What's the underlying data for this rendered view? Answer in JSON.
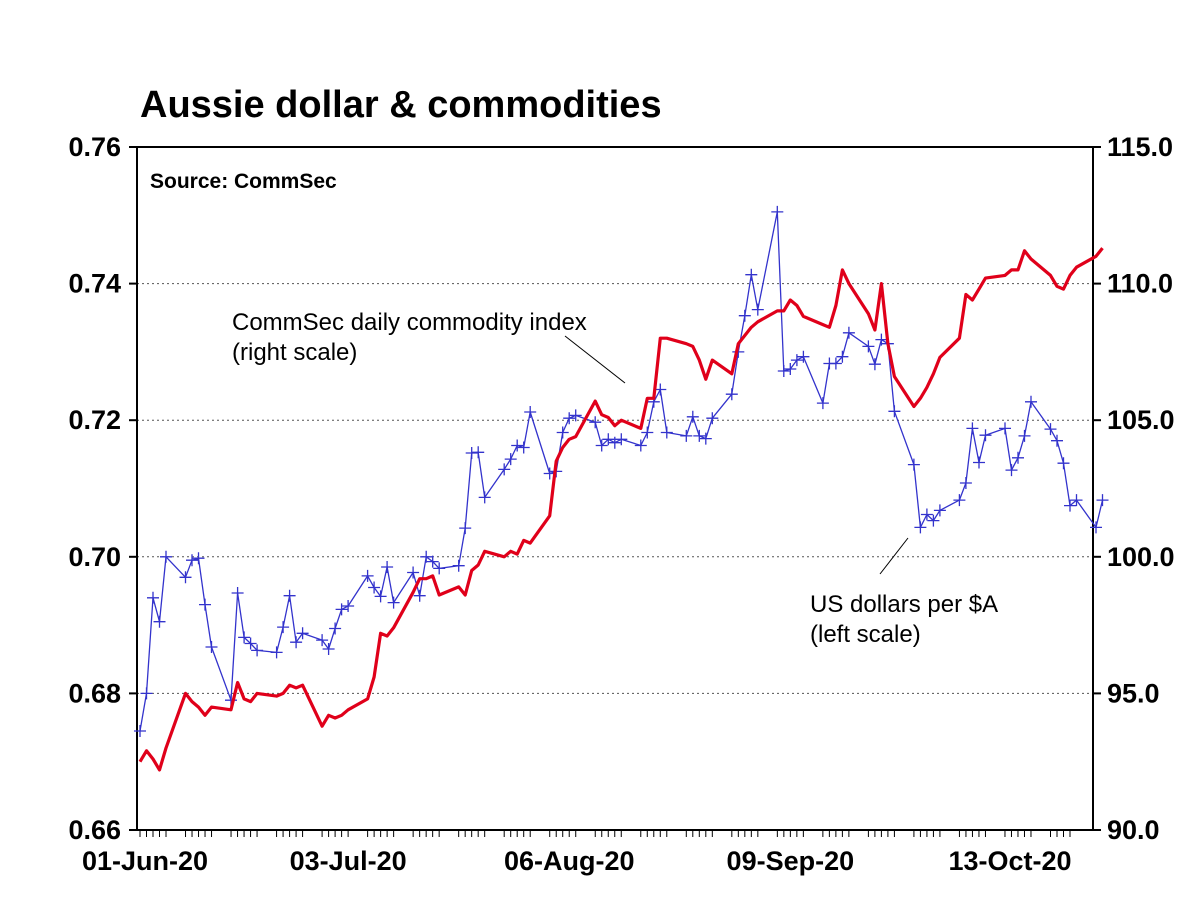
{
  "chart_data": {
    "type": "line",
    "title": "Aussie dollar & commodities",
    "source_note": "Source: CommSec",
    "x_tick_labels": [
      "01-Jun-20",
      "03-Jul-20",
      "06-Aug-20",
      "09-Sep-20",
      "13-Oct-20"
    ],
    "x_range": [
      "2020-06-01",
      "2020-10-22"
    ],
    "left_axis": {
      "range": [
        0.66,
        0.76
      ],
      "ticks": [
        "0.66",
        "0.68",
        "0.70",
        "0.72",
        "0.74",
        "0.76"
      ]
    },
    "right_axis": {
      "range": [
        90.0,
        115.0
      ],
      "ticks": [
        "90.0",
        "95.0",
        "100.0",
        "105.0",
        "110.0",
        "115.0"
      ]
    },
    "grid": "horizontal dotted",
    "annotations": [
      {
        "id": "commodity",
        "lines": [
          "CommSec daily commodity index",
          "(right scale)"
        ]
      },
      {
        "id": "aud",
        "lines": [
          "US dollars per $A",
          "(left scale)"
        ]
      }
    ],
    "series": [
      {
        "id": "aud",
        "axis": "left",
        "color": "#3333cc",
        "marker": "plus",
        "points": [
          [
            "2020-06-01",
            0.6745
          ],
          [
            "2020-06-02",
            0.68
          ],
          [
            "2020-06-03",
            0.694
          ],
          [
            "2020-06-04",
            0.6905
          ],
          [
            "2020-06-05",
            0.7
          ],
          [
            "2020-06-08",
            0.697
          ],
          [
            "2020-06-09",
            0.6995
          ],
          [
            "2020-06-10",
            0.6998
          ],
          [
            "2020-06-11",
            0.693
          ],
          [
            "2020-06-12",
            0.6868
          ],
          [
            "2020-06-15",
            0.679
          ],
          [
            "2020-06-16",
            0.6947
          ],
          [
            "2020-06-17",
            0.6882
          ],
          [
            "2020-06-18",
            0.6873
          ],
          [
            "2020-06-19",
            0.6863
          ],
          [
            "2020-06-22",
            0.686
          ],
          [
            "2020-06-23",
            0.6897
          ],
          [
            "2020-06-24",
            0.6943
          ],
          [
            "2020-06-25",
            0.6875
          ],
          [
            "2020-06-26",
            0.6888
          ],
          [
            "2020-06-29",
            0.6878
          ],
          [
            "2020-06-30",
            0.6865
          ],
          [
            "2020-07-01",
            0.6895
          ],
          [
            "2020-07-02",
            0.6923
          ],
          [
            "2020-07-03",
            0.6928
          ],
          [
            "2020-07-06",
            0.6972
          ],
          [
            "2020-07-07",
            0.6955
          ],
          [
            "2020-07-08",
            0.6942
          ],
          [
            "2020-07-09",
            0.6985
          ],
          [
            "2020-07-10",
            0.6933
          ],
          [
            "2020-07-13",
            0.6977
          ],
          [
            "2020-07-14",
            0.6943
          ],
          [
            "2020-07-15",
            0.7
          ],
          [
            "2020-07-16",
            0.6993
          ],
          [
            "2020-07-17",
            0.6983
          ],
          [
            "2020-07-20",
            0.6987
          ],
          [
            "2020-07-21",
            0.7042
          ],
          [
            "2020-07-22",
            0.7152
          ],
          [
            "2020-07-23",
            0.7153
          ],
          [
            "2020-07-24",
            0.7087
          ],
          [
            "2020-07-27",
            0.7128
          ],
          [
            "2020-07-28",
            0.7143
          ],
          [
            "2020-07-29",
            0.7163
          ],
          [
            "2020-07-30",
            0.716
          ],
          [
            "2020-07-31",
            0.7212
          ],
          [
            "2020-08-03",
            0.7122
          ],
          [
            "2020-08-04",
            0.7125
          ],
          [
            "2020-08-05",
            0.7182
          ],
          [
            "2020-08-06",
            0.7203
          ],
          [
            "2020-08-07",
            0.7207
          ],
          [
            "2020-08-10",
            0.7197
          ],
          [
            "2020-08-11",
            0.7163
          ],
          [
            "2020-08-12",
            0.7172
          ],
          [
            "2020-08-13",
            0.7167
          ],
          [
            "2020-08-14",
            0.7172
          ],
          [
            "2020-08-17",
            0.7163
          ],
          [
            "2020-08-18",
            0.7182
          ],
          [
            "2020-08-19",
            0.7227
          ],
          [
            "2020-08-20",
            0.7245
          ],
          [
            "2020-08-21",
            0.7182
          ],
          [
            "2020-08-24",
            0.7177
          ],
          [
            "2020-08-25",
            0.7205
          ],
          [
            "2020-08-26",
            0.7177
          ],
          [
            "2020-08-27",
            0.7173
          ],
          [
            "2020-08-28",
            0.7203
          ],
          [
            "2020-08-31",
            0.7238
          ],
          [
            "2020-09-01",
            0.73
          ],
          [
            "2020-09-02",
            0.7353
          ],
          [
            "2020-09-03",
            0.7413
          ],
          [
            "2020-09-04",
            0.7362
          ],
          [
            "2020-09-07",
            0.7505
          ],
          [
            "2020-09-08",
            0.7272
          ],
          [
            "2020-09-09",
            0.7275
          ],
          [
            "2020-09-10",
            0.7288
          ],
          [
            "2020-09-11",
            0.7293
          ],
          [
            "2020-09-14",
            0.7225
          ],
          [
            "2020-09-15",
            0.7283
          ],
          [
            "2020-09-16",
            0.7283
          ],
          [
            "2020-09-17",
            0.7293
          ],
          [
            "2020-09-18",
            0.7328
          ],
          [
            "2020-09-21",
            0.7308
          ],
          [
            "2020-09-22",
            0.7282
          ],
          [
            "2020-09-23",
            0.7318
          ],
          [
            "2020-09-24",
            0.7312
          ],
          [
            "2020-09-25",
            0.7213
          ],
          [
            "2020-09-28",
            0.7135
          ],
          [
            "2020-09-29",
            0.7043
          ],
          [
            "2020-09-30",
            0.7062
          ],
          [
            "2020-10-01",
            0.7053
          ],
          [
            "2020-10-02",
            0.7068
          ],
          [
            "2020-10-05",
            0.7083
          ],
          [
            "2020-10-06",
            0.7108
          ],
          [
            "2020-10-07",
            0.7188
          ],
          [
            "2020-10-08",
            0.7138
          ],
          [
            "2020-10-09",
            0.7178
          ],
          [
            "2020-10-12",
            0.7188
          ],
          [
            "2020-10-13",
            0.7127
          ],
          [
            "2020-10-14",
            0.7145
          ],
          [
            "2020-10-15",
            0.7177
          ],
          [
            "2020-10-16",
            0.7227
          ],
          [
            "2020-10-19",
            0.7187
          ],
          [
            "2020-10-20",
            0.717
          ],
          [
            "2020-10-21",
            0.7137
          ],
          [
            "2020-10-22",
            0.7075
          ],
          [
            "2020-10-23",
            0.7083
          ],
          [
            "2020-10-26",
            0.7043
          ],
          [
            "2020-10-27",
            0.7083
          ]
        ]
      },
      {
        "id": "commodity",
        "axis": "right",
        "color": "#e0001a",
        "marker": "none",
        "points": [
          [
            "2020-06-01",
            92.5
          ],
          [
            "2020-06-02",
            92.9
          ],
          [
            "2020-06-03",
            92.6
          ],
          [
            "2020-06-04",
            92.2
          ],
          [
            "2020-06-05",
            93.0
          ],
          [
            "2020-06-08",
            95.0
          ],
          [
            "2020-06-09",
            94.7
          ],
          [
            "2020-06-10",
            94.5
          ],
          [
            "2020-06-11",
            94.2
          ],
          [
            "2020-06-12",
            94.5
          ],
          [
            "2020-06-15",
            94.4
          ],
          [
            "2020-06-16",
            95.4
          ],
          [
            "2020-06-17",
            94.8
          ],
          [
            "2020-06-18",
            94.7
          ],
          [
            "2020-06-19",
            95.0
          ],
          [
            "2020-06-22",
            94.9
          ],
          [
            "2020-06-23",
            95.0
          ],
          [
            "2020-06-24",
            95.3
          ],
          [
            "2020-06-25",
            95.2
          ],
          [
            "2020-06-26",
            95.3
          ],
          [
            "2020-06-29",
            93.8
          ],
          [
            "2020-06-30",
            94.2
          ],
          [
            "2020-07-01",
            94.1
          ],
          [
            "2020-07-02",
            94.2
          ],
          [
            "2020-07-03",
            94.4
          ],
          [
            "2020-07-06",
            94.8
          ],
          [
            "2020-07-07",
            95.6
          ],
          [
            "2020-07-08",
            97.2
          ],
          [
            "2020-07-09",
            97.1
          ],
          [
            "2020-07-10",
            97.4
          ],
          [
            "2020-07-13",
            98.7
          ],
          [
            "2020-07-14",
            99.2
          ],
          [
            "2020-07-15",
            99.2
          ],
          [
            "2020-07-16",
            99.3
          ],
          [
            "2020-07-17",
            98.6
          ],
          [
            "2020-07-20",
            98.9
          ],
          [
            "2020-07-21",
            98.6
          ],
          [
            "2020-07-22",
            99.5
          ],
          [
            "2020-07-23",
            99.7
          ],
          [
            "2020-07-24",
            100.2
          ],
          [
            "2020-07-27",
            100.0
          ],
          [
            "2020-07-28",
            100.2
          ],
          [
            "2020-07-29",
            100.1
          ],
          [
            "2020-07-30",
            100.6
          ],
          [
            "2020-07-31",
            100.5
          ],
          [
            "2020-08-03",
            101.5
          ],
          [
            "2020-08-04",
            103.5
          ],
          [
            "2020-08-05",
            104.0
          ],
          [
            "2020-08-06",
            104.3
          ],
          [
            "2020-08-07",
            104.4
          ],
          [
            "2020-08-10",
            105.7
          ],
          [
            "2020-08-11",
            105.2
          ],
          [
            "2020-08-12",
            105.1
          ],
          [
            "2020-08-13",
            104.8
          ],
          [
            "2020-08-14",
            105.0
          ],
          [
            "2020-08-17",
            104.7
          ],
          [
            "2020-08-18",
            105.8
          ],
          [
            "2020-08-19",
            105.8
          ],
          [
            "2020-08-20",
            108.0
          ],
          [
            "2020-08-21",
            108.0
          ],
          [
            "2020-08-24",
            107.8
          ],
          [
            "2020-08-25",
            107.7
          ],
          [
            "2020-08-26",
            107.2
          ],
          [
            "2020-08-27",
            106.5
          ],
          [
            "2020-08-28",
            107.2
          ],
          [
            "2020-08-31",
            106.7
          ],
          [
            "2020-09-01",
            107.8
          ],
          [
            "2020-09-02",
            108.1
          ],
          [
            "2020-09-03",
            108.4
          ],
          [
            "2020-09-04",
            108.6
          ],
          [
            "2020-09-07",
            109.0
          ],
          [
            "2020-09-08",
            109.0
          ],
          [
            "2020-09-09",
            109.4
          ],
          [
            "2020-09-10",
            109.2
          ],
          [
            "2020-09-11",
            108.8
          ],
          [
            "2020-09-14",
            108.5
          ],
          [
            "2020-09-15",
            108.4
          ],
          [
            "2020-09-16",
            109.2
          ],
          [
            "2020-09-17",
            110.5
          ],
          [
            "2020-09-18",
            110.0
          ],
          [
            "2020-09-21",
            108.9
          ],
          [
            "2020-09-22",
            108.3
          ],
          [
            "2020-09-23",
            110.0
          ],
          [
            "2020-09-24",
            107.8
          ],
          [
            "2020-09-25",
            106.6
          ],
          [
            "2020-09-28",
            105.5
          ],
          [
            "2020-09-29",
            105.8
          ],
          [
            "2020-09-30",
            106.2
          ],
          [
            "2020-10-01",
            106.7
          ],
          [
            "2020-10-02",
            107.3
          ],
          [
            "2020-10-05",
            108.0
          ],
          [
            "2020-10-06",
            109.6
          ],
          [
            "2020-10-07",
            109.4
          ],
          [
            "2020-10-08",
            109.8
          ],
          [
            "2020-10-09",
            110.2
          ],
          [
            "2020-10-12",
            110.3
          ],
          [
            "2020-10-13",
            110.5
          ],
          [
            "2020-10-14",
            110.5
          ],
          [
            "2020-10-15",
            111.2
          ],
          [
            "2020-10-16",
            110.9
          ],
          [
            "2020-10-19",
            110.3
          ],
          [
            "2020-10-20",
            109.9
          ],
          [
            "2020-10-21",
            109.8
          ],
          [
            "2020-10-22",
            110.3
          ],
          [
            "2020-10-23",
            110.6
          ],
          [
            "2020-10-26",
            111.0
          ],
          [
            "2020-10-27",
            111.3
          ]
        ]
      }
    ]
  }
}
